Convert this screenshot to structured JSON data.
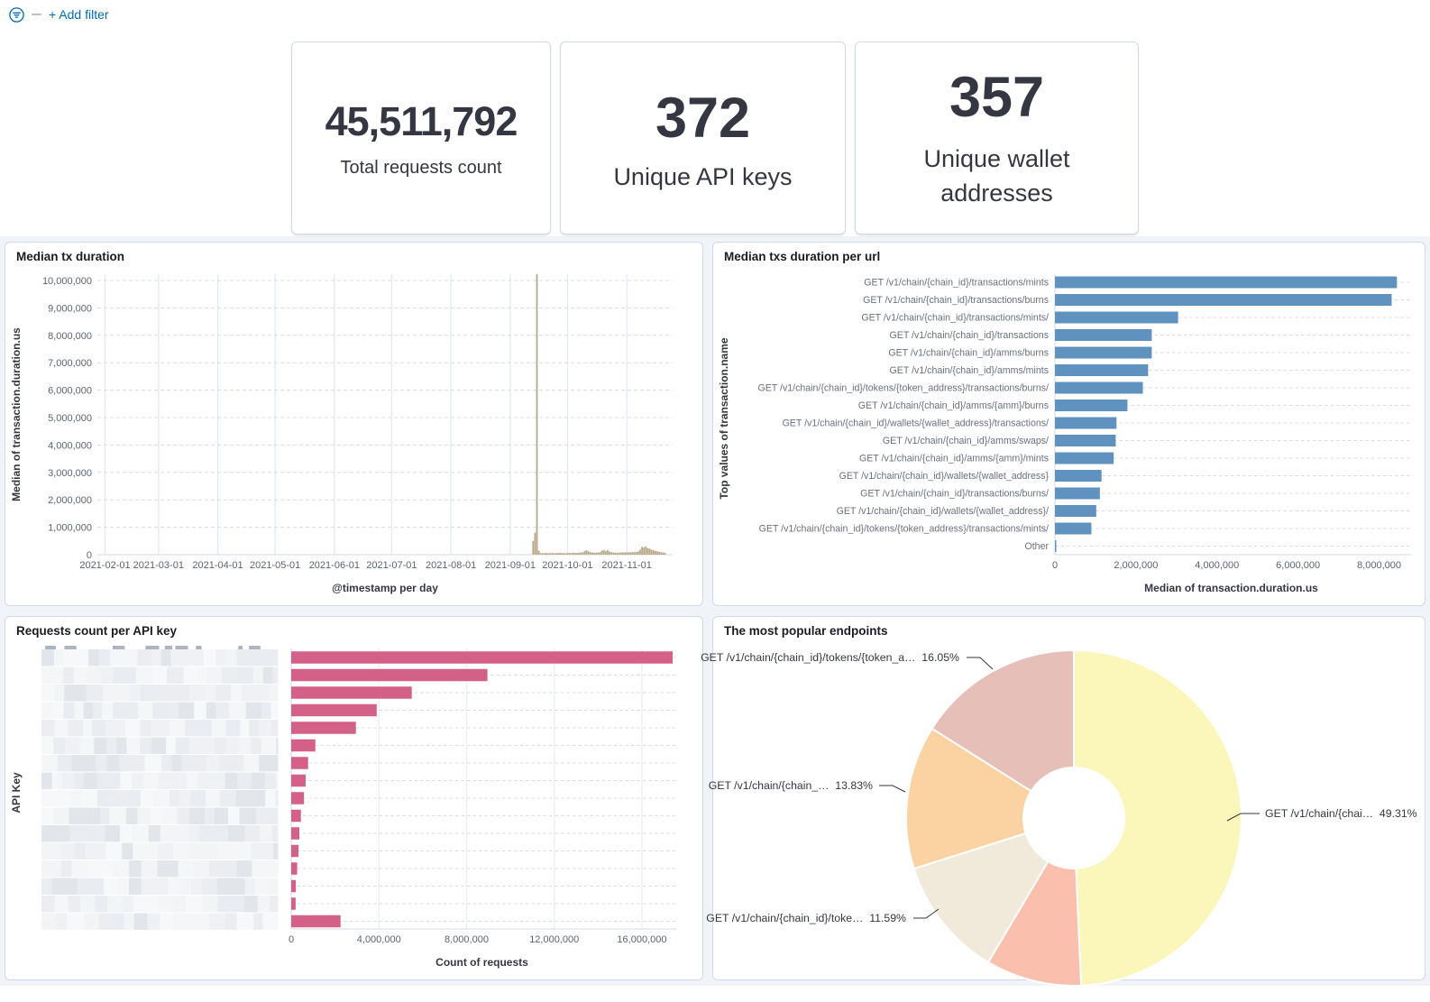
{
  "filter_bar": {
    "add_filter_label": "+ Add filter"
  },
  "metrics": [
    {
      "value": "45,511,792",
      "label": "Total requests count"
    },
    {
      "value": "372",
      "label": "Unique API keys"
    },
    {
      "value": "357",
      "label": "Unique wallet addresses"
    }
  ],
  "colors": {
    "accent_link": "#006bb4",
    "tan_bar": "#b9a888",
    "blue_bar": "#6092c0",
    "pink_bar": "#d36086",
    "grid_vertical": "#e6ebf3",
    "grid_dashed": "#d8dce3",
    "axis_line": "#d3dae6"
  },
  "chart_data": [
    {
      "type": "bar",
      "orientation": "vertical-time",
      "title": "Median tx duration",
      "xlabel": "@timestamp per day",
      "ylabel": "Median of transaction.duration.us",
      "ylim": [
        0,
        10000000
      ],
      "ytick_step": 1000000,
      "xticks": [
        "2021-02-01",
        "2021-03-01",
        "2021-04-01",
        "2021-05-01",
        "2021-06-01",
        "2021-07-01",
        "2021-08-01",
        "2021-09-01",
        "2021-10-01",
        "2021-11-01"
      ],
      "x_domain": [
        "2021-01-28",
        "2021-11-25"
      ],
      "bar_color": "#b9a888",
      "points": [
        [
          "2021-09-13",
          500000
        ],
        [
          "2021-09-14",
          800000
        ],
        [
          "2021-09-15",
          10230000
        ],
        [
          "2021-09-16",
          150000
        ],
        [
          "2021-09-17",
          60000
        ],
        [
          "2021-09-18",
          50000
        ],
        [
          "2021-09-19",
          55000
        ],
        [
          "2021-09-20",
          60000
        ],
        [
          "2021-09-21",
          50000
        ],
        [
          "2021-09-22",
          55000
        ],
        [
          "2021-09-23",
          60000
        ],
        [
          "2021-09-24",
          50000
        ],
        [
          "2021-09-25",
          55000
        ],
        [
          "2021-09-26",
          60000
        ],
        [
          "2021-09-27",
          65000
        ],
        [
          "2021-09-28",
          55000
        ],
        [
          "2021-09-29",
          60000
        ],
        [
          "2021-09-30",
          55000
        ],
        [
          "2021-10-01",
          60000
        ],
        [
          "2021-10-02",
          65000
        ],
        [
          "2021-10-03",
          60000
        ],
        [
          "2021-10-04",
          70000
        ],
        [
          "2021-10-05",
          65000
        ],
        [
          "2021-10-06",
          60000
        ],
        [
          "2021-10-07",
          70000
        ],
        [
          "2021-10-08",
          80000
        ],
        [
          "2021-10-09",
          90000
        ],
        [
          "2021-10-10",
          140000
        ],
        [
          "2021-10-11",
          160000
        ],
        [
          "2021-10-12",
          120000
        ],
        [
          "2021-10-13",
          90000
        ],
        [
          "2021-10-14",
          80000
        ],
        [
          "2021-10-15",
          70000
        ],
        [
          "2021-10-16",
          75000
        ],
        [
          "2021-10-17",
          80000
        ],
        [
          "2021-10-18",
          90000
        ],
        [
          "2021-10-19",
          150000
        ],
        [
          "2021-10-20",
          170000
        ],
        [
          "2021-10-21",
          130000
        ],
        [
          "2021-10-22",
          160000
        ],
        [
          "2021-10-23",
          110000
        ],
        [
          "2021-10-24",
          90000
        ],
        [
          "2021-10-25",
          80000
        ],
        [
          "2021-10-26",
          75000
        ],
        [
          "2021-10-27",
          70000
        ],
        [
          "2021-10-28",
          75000
        ],
        [
          "2021-10-29",
          80000
        ],
        [
          "2021-10-30",
          85000
        ],
        [
          "2021-10-31",
          80000
        ],
        [
          "2021-11-01",
          85000
        ],
        [
          "2021-11-02",
          90000
        ],
        [
          "2021-11-03",
          85000
        ],
        [
          "2021-11-04",
          90000
        ],
        [
          "2021-11-05",
          95000
        ],
        [
          "2021-11-06",
          100000
        ],
        [
          "2021-11-07",
          120000
        ],
        [
          "2021-11-08",
          180000
        ],
        [
          "2021-11-09",
          280000
        ],
        [
          "2021-11-10",
          260000
        ],
        [
          "2021-11-11",
          300000
        ],
        [
          "2021-11-12",
          240000
        ],
        [
          "2021-11-13",
          220000
        ],
        [
          "2021-11-14",
          180000
        ],
        [
          "2021-11-15",
          160000
        ],
        [
          "2021-11-16",
          140000
        ],
        [
          "2021-11-17",
          120000
        ],
        [
          "2021-11-18",
          100000
        ],
        [
          "2021-11-19",
          90000
        ],
        [
          "2021-11-20",
          80000
        ],
        [
          "2021-11-21",
          70000
        ]
      ]
    },
    {
      "type": "bar",
      "orientation": "horizontal",
      "title": "Median txs duration per url",
      "xlabel": "Median of transaction.duration.us",
      "ylabel": "Top values of transaction.name",
      "xlim": [
        0,
        8700000
      ],
      "xticks": [
        0,
        2000000,
        4000000,
        6000000,
        8000000
      ],
      "bar_color": "#6092c0",
      "categories": [
        "GET /v1/chain/{chain_id}/transactions/mints",
        "GET /v1/chain/{chain_id}/transactions/burns",
        "GET /v1/chain/{chain_id}/transactions/mints/",
        "GET /v1/chain/{chain_id}/transactions",
        "GET /v1/chain/{chain_id}/amms/burns",
        "GET /v1/chain/{chain_id}/amms/mints",
        "GET /v1/chain/{chain_id}/tokens/{token_address}/transactions/burns/",
        "GET /v1/chain/{chain_id}/amms/{amm}/burns",
        "GET /v1/chain/{chain_id}/wallets/{wallet_address}/transactions/",
        "GET /v1/chain/{chain_id}/amms/swaps/",
        "GET /v1/chain/{chain_id}/amms/{amm}/mints",
        "GET /v1/chain/{chain_id}/wallets/{wallet_address}",
        "GET /v1/chain/{chain_id}/transactions/burns/",
        "GET /v1/chain/{chain_id}/wallets/{wallet_address}/",
        "GET /v1/chain/{chain_id}/tokens/{token_address}/transactions/mints/",
        "Other"
      ],
      "values": [
        8440000,
        8310000,
        3040000,
        2390000,
        2390000,
        2300000,
        2170000,
        1790000,
        1520000,
        1500000,
        1450000,
        1150000,
        1110000,
        1020000,
        900000,
        30000
      ]
    },
    {
      "type": "bar",
      "orientation": "horizontal",
      "title": "Requests count per API key",
      "xlabel": "Count of requests",
      "ylabel": "API Key",
      "xlim": [
        0,
        17400000
      ],
      "xticks": [
        0,
        4000000,
        8000000,
        12000000,
        16000000
      ],
      "bar_color": "#d36086",
      "categories_redacted": true,
      "categories": [
        "[redacted]",
        "[redacted]",
        "[redacted]",
        "[redacted]",
        "[redacted]",
        "[redacted]",
        "[redacted]",
        "[redacted]",
        "[redacted]",
        "[redacted]",
        "[redacted]",
        "[redacted]",
        "[redacted]",
        "[redacted]",
        "[redacted]",
        "Other"
      ],
      "values": [
        17400000,
        8950000,
        5500000,
        3900000,
        2950000,
        1100000,
        770000,
        660000,
        580000,
        440000,
        370000,
        330000,
        270000,
        210000,
        200000,
        2250000
      ]
    },
    {
      "type": "pie",
      "donut": true,
      "title": "The most popular endpoints",
      "slices": [
        {
          "label": "GET /v1/chain/{chai…",
          "pct": 49.31,
          "pct_label": "49.31%",
          "color": "#fbf6ba"
        },
        {
          "label": null,
          "pct": 9.22,
          "pct_label": null,
          "color": "#fac0ad"
        },
        {
          "label": "GET /v1/chain/{chain_id}/toke…",
          "pct": 11.59,
          "pct_label": "11.59%",
          "color": "#f1e9d9"
        },
        {
          "label": "GET /v1/chain/{chain_…",
          "pct": 13.83,
          "pct_label": "13.83%",
          "color": "#fbd3a3"
        },
        {
          "label": "GET /v1/chain/{chain_id}/tokens/{token_a…",
          "pct": 16.05,
          "pct_label": "16.05%",
          "color": "#e6c0b8"
        }
      ]
    }
  ]
}
